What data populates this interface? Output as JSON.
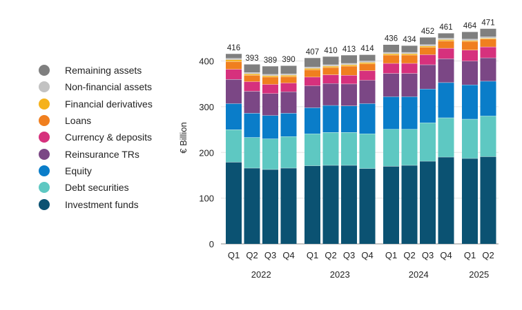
{
  "chart_data": {
    "type": "bar",
    "stacked": true,
    "ylabel": "€ Billion",
    "ylim": [
      0,
      480
    ],
    "yticks": [
      0,
      100,
      200,
      300,
      400
    ],
    "categories": [
      "Q1",
      "Q2",
      "Q3",
      "Q4",
      "Q1",
      "Q2",
      "Q3",
      "Q4",
      "Q1",
      "Q2",
      "Q3",
      "Q4",
      "Q1",
      "Q2"
    ],
    "years": [
      {
        "label": "2022",
        "quarters": 4
      },
      {
        "label": "2023",
        "quarters": 4
      },
      {
        "label": "2024",
        "quarters": 4
      },
      {
        "label": "2025",
        "quarters": 2
      }
    ],
    "totals": [
      416,
      393,
      389,
      390,
      407,
      410,
      413,
      414,
      436,
      434,
      452,
      461,
      464,
      471
    ],
    "series": [
      {
        "name": "Investment funds",
        "color": "#0b5272",
        "values": [
          179,
          166,
          163,
          166,
          171,
          172,
          172,
          165,
          170,
          172,
          181,
          190,
          187,
          191
        ]
      },
      {
        "name": "Debt securities",
        "color": "#5ec8c2",
        "values": [
          71,
          67,
          67,
          69,
          70,
          72,
          72,
          76,
          81,
          79,
          84,
          86,
          86,
          89
        ]
      },
      {
        "name": "Equity",
        "color": "#0a7dc9",
        "values": [
          57,
          53,
          51,
          51,
          57,
          59,
          58,
          66,
          71,
          71,
          74,
          77,
          75,
          76
        ]
      },
      {
        "name": "Reinsurance TRs",
        "color": "#7b4785",
        "values": [
          53,
          48,
          48,
          47,
          48,
          48,
          48,
          51,
          51,
          51,
          53,
          52,
          52,
          51
        ]
      },
      {
        "name": "Currency & deposits",
        "color": "#d6317d",
        "values": [
          22,
          21,
          20,
          19,
          19,
          19,
          19,
          21,
          22,
          22,
          22,
          23,
          24,
          24
        ]
      },
      {
        "name": "Loans",
        "color": "#f07f1f",
        "values": [
          17,
          14,
          16,
          14,
          16,
          16,
          20,
          15,
          18,
          18,
          16,
          16,
          19,
          17
        ]
      },
      {
        "name": "Financial derivatives",
        "color": "#f5b21c",
        "values": [
          4,
          3,
          3,
          3,
          3,
          3,
          3,
          3,
          3,
          3,
          3,
          3,
          2,
          2
        ]
      },
      {
        "name": "Non-financial assets",
        "color": "#c2c2c2",
        "values": [
          3,
          3,
          3,
          3,
          3,
          3,
          3,
          3,
          3,
          3,
          3,
          3,
          3,
          3
        ]
      },
      {
        "name": "Remaining assets",
        "color": "#7f7f7f",
        "values": [
          10,
          18,
          18,
          18,
          20,
          18,
          18,
          14,
          17,
          15,
          16,
          11,
          16,
          18
        ]
      }
    ],
    "legend": [
      "Remaining assets",
      "Non-financial assets",
      "Financial derivatives",
      "Loans",
      "Currency & deposits",
      "Reinsurance TRs",
      "Equity",
      "Debt securities",
      "Investment funds"
    ]
  }
}
